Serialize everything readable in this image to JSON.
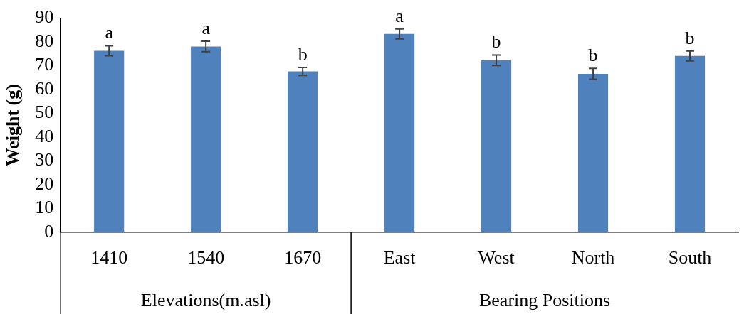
{
  "chart_data": {
    "type": "bar",
    "ylabel": "Weight (g)",
    "categories": [
      "1410",
      "1540",
      "1670",
      "East",
      "West",
      "North",
      "South"
    ],
    "values": [
      76.3,
      78.1,
      67.6,
      83.4,
      72.3,
      66.6,
      74.1
    ],
    "errors": [
      2.1,
      2.2,
      1.7,
      2.1,
      2.2,
      2.3,
      2.1
    ],
    "color": "#4f81bd",
    "ylim": [
      0,
      90
    ],
    "yticks": [
      0,
      10,
      20,
      30,
      40,
      50,
      60,
      70,
      80,
      90
    ],
    "grid": false,
    "legend": false,
    "annotations": [
      "a",
      "a",
      "b",
      "a",
      "b",
      "b",
      "b",
      "Elevations(m.asl)",
      "Bearing Positions"
    ]
  }
}
